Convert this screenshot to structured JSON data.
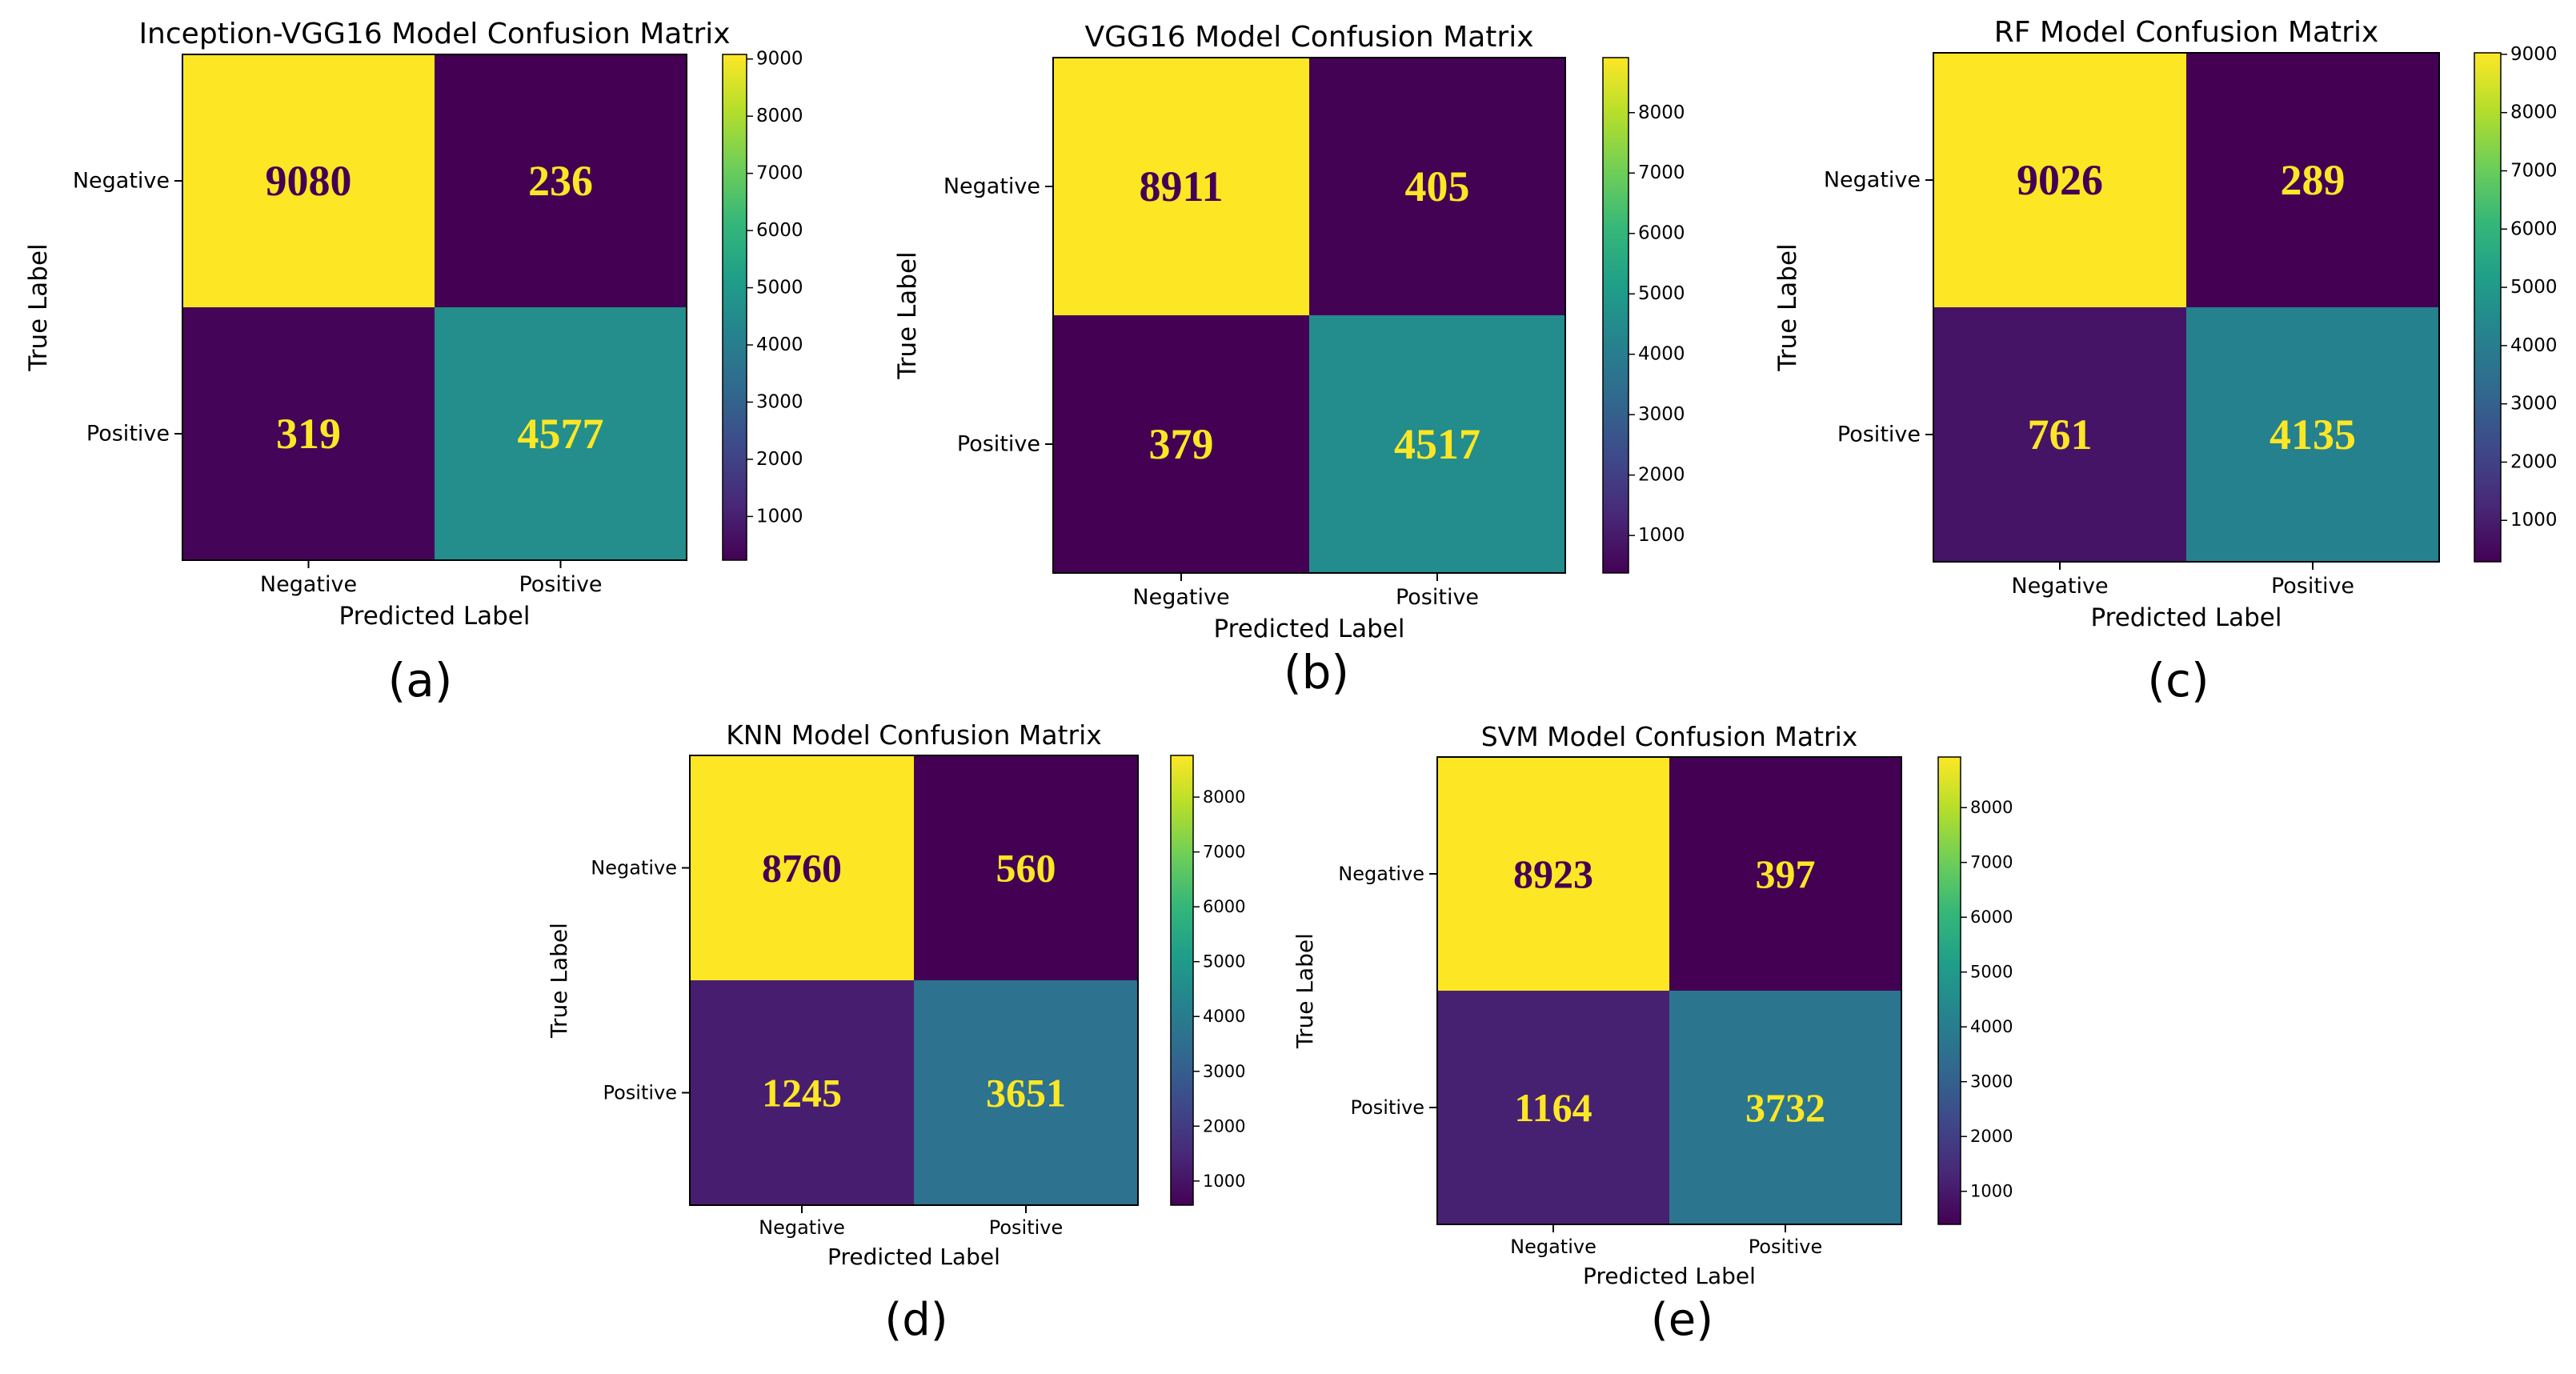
{
  "figure": {
    "viridis_stops": [
      "#440154",
      "#482878",
      "#3e4989",
      "#31688e",
      "#26828e",
      "#1f9e89",
      "#35b779",
      "#6ece58",
      "#b5de2b",
      "#fde725"
    ],
    "cell_text_color": "#fde725",
    "cell_text_color_on_light": "#440154"
  },
  "chart_data": [
    {
      "type": "heatmap",
      "panel_label": "(a)",
      "title": "Inception-VGG16 Model Confusion Matrix",
      "xlabel": "Predicted Label",
      "ylabel": "True Label",
      "x_categories": [
        "Negative",
        "Positive"
      ],
      "y_categories": [
        "Negative",
        "Positive"
      ],
      "matrix": [
        [
          9080,
          236
        ],
        [
          319,
          4577
        ]
      ],
      "colorbar": {
        "vmin": 236,
        "vmax": 9080,
        "ticks": [
          1000,
          2000,
          3000,
          4000,
          5000,
          6000,
          7000,
          8000,
          9000
        ]
      }
    },
    {
      "type": "heatmap",
      "panel_label": "(b)",
      "title": "VGG16 Model Confusion Matrix",
      "xlabel": "Predicted Label",
      "ylabel": "True Label",
      "x_categories": [
        "Negative",
        "Positive"
      ],
      "y_categories": [
        "Negative",
        "Positive"
      ],
      "matrix": [
        [
          8911,
          405
        ],
        [
          379,
          4517
        ]
      ],
      "colorbar": {
        "vmin": 379,
        "vmax": 8911,
        "ticks": [
          1000,
          2000,
          3000,
          4000,
          5000,
          6000,
          7000,
          8000
        ]
      }
    },
    {
      "type": "heatmap",
      "panel_label": "(c)",
      "title": "RF Model Confusion Matrix",
      "xlabel": "Predicted Label",
      "ylabel": "True Label",
      "x_categories": [
        "Negative",
        "Positive"
      ],
      "y_categories": [
        "Negative",
        "Positive"
      ],
      "matrix": [
        [
          9026,
          289
        ],
        [
          761,
          4135
        ]
      ],
      "colorbar": {
        "vmin": 289,
        "vmax": 9026,
        "ticks": [
          1000,
          2000,
          3000,
          4000,
          5000,
          6000,
          7000,
          8000,
          9000
        ]
      }
    },
    {
      "type": "heatmap",
      "panel_label": "(d)",
      "title": "KNN Model Confusion Matrix",
      "xlabel": "Predicted Label",
      "ylabel": "True Label",
      "x_categories": [
        "Negative",
        "Positive"
      ],
      "y_categories": [
        "Negative",
        "Positive"
      ],
      "matrix": [
        [
          8760,
          560
        ],
        [
          1245,
          3651
        ]
      ],
      "colorbar": {
        "vmin": 560,
        "vmax": 8760,
        "ticks": [
          1000,
          2000,
          3000,
          4000,
          5000,
          6000,
          7000,
          8000
        ]
      }
    },
    {
      "type": "heatmap",
      "panel_label": "(e)",
      "title": "SVM Model Confusion Matrix",
      "xlabel": "Predicted Label",
      "ylabel": "True Label",
      "x_categories": [
        "Negative",
        "Positive"
      ],
      "y_categories": [
        "Negative",
        "Positive"
      ],
      "matrix": [
        [
          8923,
          397
        ],
        [
          1164,
          3732
        ]
      ],
      "colorbar": {
        "vmin": 397,
        "vmax": 8923,
        "ticks": [
          1000,
          2000,
          3000,
          4000,
          5000,
          6000,
          7000,
          8000
        ]
      }
    }
  ]
}
